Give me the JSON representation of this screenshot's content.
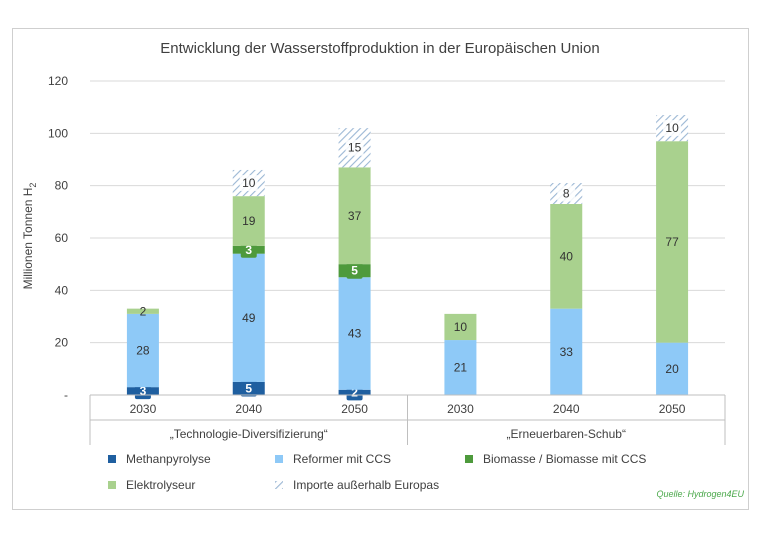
{
  "chart_data": {
    "type": "bar",
    "stacked": true,
    "title": "Entwicklung der Wasserstoffproduktion in der Europäischen Union",
    "ylabel": "Millionen Tonnen H",
    "ylabel_sub": "2",
    "ylim": [
      0,
      120
    ],
    "yticks": [
      "-",
      "20",
      "40",
      "60",
      "80",
      "100",
      "120"
    ],
    "grid": true,
    "legend_position": "bottom",
    "source": "Quelle: Hydrogen4EU",
    "groups": [
      {
        "label": "„Technologie-Diversifizierung“",
        "categories": [
          "2030",
          "2040",
          "2050"
        ]
      },
      {
        "label": "„Erneuerbaren-Schub“",
        "categories": [
          "2030",
          "2040",
          "2050"
        ]
      }
    ],
    "categories": [
      "2030",
      "2040",
      "2050",
      "2030",
      "2040",
      "2050"
    ],
    "series": [
      {
        "name": "Methanpyrolyse",
        "color": "#1f5fa0",
        "values": [
          3,
          5,
          2,
          0,
          0,
          0
        ]
      },
      {
        "name": "Reformer mit CCS",
        "color": "#8ec9f7",
        "values": [
          28,
          49,
          43,
          21,
          33,
          20
        ]
      },
      {
        "name": "Biomasse / Biomasse mit CCS",
        "color": "#4e9a3c",
        "values": [
          0,
          3,
          5,
          0,
          0,
          0
        ]
      },
      {
        "name": "Elektrolyseur",
        "color": "#a9d18e",
        "values": [
          2,
          19,
          37,
          10,
          40,
          77
        ]
      },
      {
        "name": "Importe außerhalb Europas",
        "color": "#9bb7d4",
        "pattern": "hatch",
        "values": [
          0,
          10,
          15,
          0,
          8,
          10
        ]
      }
    ]
  }
}
